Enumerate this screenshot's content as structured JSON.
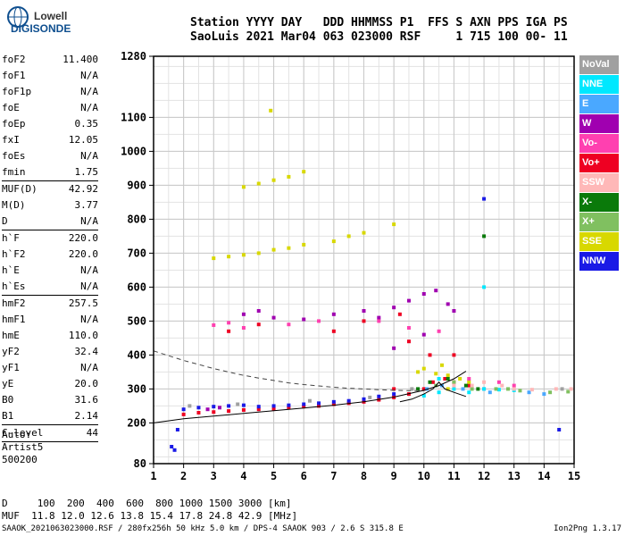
{
  "logo": {
    "line1": "Lowell",
    "line2": "DIGISONDE"
  },
  "header": {
    "line1": "Station YYYY DAY   DDD HHMMSS P1  FFS S AXN PPS IGA PS",
    "line2": "SaoLuis 2021 Mar04 063 023000 RSF     1 715 100 00- 11"
  },
  "params": [
    {
      "name": "foF2",
      "value": "11.400",
      "sep": false
    },
    {
      "name": "foF1",
      "value": "N/A",
      "sep": false
    },
    {
      "name": "foF1p",
      "value": "N/A",
      "sep": false
    },
    {
      "name": "foE",
      "value": "N/A",
      "sep": false
    },
    {
      "name": "foEp",
      "value": "0.35",
      "sep": false
    },
    {
      "name": "fxI",
      "value": "12.05",
      "sep": false
    },
    {
      "name": "foEs",
      "value": "N/A",
      "sep": false
    },
    {
      "name": "fmin",
      "value": "1.75",
      "sep": true
    },
    {
      "name": "MUF(D)",
      "value": "42.92",
      "sep": false
    },
    {
      "name": "M(D)",
      "value": "3.77",
      "sep": false
    },
    {
      "name": "D",
      "value": "N/A",
      "sep": true
    },
    {
      "name": "h`F",
      "value": "220.0",
      "sep": false
    },
    {
      "name": "h`F2",
      "value": "220.0",
      "sep": false
    },
    {
      "name": "h`E",
      "value": "N/A",
      "sep": false
    },
    {
      "name": "h`Es",
      "value": "N/A",
      "sep": true
    },
    {
      "name": "hmF2",
      "value": "257.5",
      "sep": false
    },
    {
      "name": "hmF1",
      "value": "N/A",
      "sep": false
    },
    {
      "name": "hmE",
      "value": "110.0",
      "sep": false
    },
    {
      "name": "yF2",
      "value": "32.4",
      "sep": false
    },
    {
      "name": "yF1",
      "value": "N/A",
      "sep": false
    },
    {
      "name": "yE",
      "value": "20.0",
      "sep": false
    },
    {
      "name": "B0",
      "value": "31.6",
      "sep": false
    },
    {
      "name": "B1",
      "value": "2.14",
      "sep": true
    },
    {
      "name": "C-level",
      "value": "44",
      "sep": true
    }
  ],
  "auto": {
    "line1": "Auto:",
    "line2": "Artist5",
    "line3": "500200"
  },
  "footer": {
    "line1": "D     100  200  400  600  800 1000 1500 3000 [km]",
    "line2": "MUF  11.8 12.0 12.6 13.8 15.4 17.8 24.8 42.9 [MHz]"
  },
  "bottom_line": "SAAOK_2021063023000.RSF / 280fx256h 50 kHz 5.0 km / DPS-4 SAAOK 903 / 2.6 S 315.8 E",
  "version": "Ion2Png 1.3.17",
  "legend": [
    {
      "label": "NoVal",
      "bg": "#a0a0a0",
      "fg": "#ffffff"
    },
    {
      "label": "NNE",
      "bg": "#00e8ff",
      "fg": "#ffffff"
    },
    {
      "label": "E",
      "bg": "#4aa8ff",
      "fg": "#ffffff"
    },
    {
      "label": "W",
      "bg": "#a000b0",
      "fg": "#ffffff"
    },
    {
      "label": "Vo-",
      "bg": "#ff40b0",
      "fg": "#ffffff"
    },
    {
      "label": "Vo+",
      "bg": "#ee0022",
      "fg": "#ffffff"
    },
    {
      "label": "SSW",
      "bg": "#ffb8b8",
      "fg": "#ffffff"
    },
    {
      "label": "X-",
      "bg": "#0a7a0a",
      "fg": "#ffffff"
    },
    {
      "label": "X+",
      "bg": "#80c060",
      "fg": "#ffffff"
    },
    {
      "label": "SSE",
      "bg": "#d8d800",
      "fg": "#ffffff"
    },
    {
      "label": "NNW",
      "bg": "#1a1ae6",
      "fg": "#ffffff"
    }
  ],
  "chart_data": {
    "type": "scatter",
    "title": "",
    "xlabel": "",
    "ylabel": "",
    "xlim": [
      1,
      15
    ],
    "ylim": [
      80,
      1280
    ],
    "x_ticks": [
      1,
      2,
      3,
      4,
      5,
      6,
      7,
      8,
      9,
      10,
      11,
      12,
      13,
      14,
      15
    ],
    "y_ticks": [
      80,
      200,
      300,
      400,
      500,
      600,
      700,
      800,
      900,
      1000,
      1100,
      1280
    ],
    "x_tick_labels": [
      "1",
      "2",
      "3",
      "4",
      "5",
      "6",
      "7",
      "8",
      "9",
      "10",
      "11",
      "12",
      "13",
      "14",
      "15"
    ],
    "y_tick_labels": [
      "80",
      "200",
      "300",
      "400",
      "500",
      "600",
      "700",
      "800",
      "900",
      "1000",
      "1100",
      "1280"
    ],
    "grid": true,
    "series": [
      {
        "name": "Vo+",
        "color": "#ee0022",
        "points": [
          [
            2.0,
            225
          ],
          [
            2.5,
            230
          ],
          [
            3.0,
            232
          ],
          [
            3.5,
            235
          ],
          [
            4.0,
            238
          ],
          [
            4.5,
            240
          ],
          [
            5.0,
            242
          ],
          [
            5.5,
            245
          ],
          [
            6.0,
            248
          ],
          [
            6.5,
            250
          ],
          [
            7.0,
            255
          ],
          [
            7.5,
            258
          ],
          [
            8.0,
            262
          ],
          [
            8.5,
            268
          ],
          [
            9.0,
            275
          ],
          [
            9.5,
            285
          ],
          [
            10.0,
            300
          ],
          [
            10.3,
            320
          ],
          [
            10.7,
            330
          ],
          [
            11.0,
            320
          ],
          [
            11.5,
            310
          ],
          [
            9.0,
            300
          ],
          [
            9.2,
            520
          ],
          [
            8.0,
            500
          ],
          [
            7.0,
            470
          ],
          [
            4.5,
            490
          ],
          [
            3.5,
            470
          ],
          [
            10.2,
            400
          ],
          [
            9.5,
            440
          ],
          [
            11.0,
            400
          ]
        ]
      },
      {
        "name": "NNW",
        "color": "#1a1ae6",
        "points": [
          [
            2.0,
            240
          ],
          [
            2.5,
            245
          ],
          [
            3.0,
            248
          ],
          [
            3.5,
            250
          ],
          [
            4.0,
            252
          ],
          [
            4.5,
            248
          ],
          [
            5.0,
            250
          ],
          [
            5.5,
            252
          ],
          [
            6.0,
            255
          ],
          [
            6.5,
            258
          ],
          [
            7.0,
            262
          ],
          [
            7.5,
            265
          ],
          [
            8.0,
            270
          ],
          [
            8.5,
            278
          ],
          [
            9.0,
            285
          ],
          [
            1.8,
            180
          ],
          [
            1.6,
            130
          ],
          [
            1.7,
            120
          ],
          [
            12.0,
            860
          ],
          [
            14.5,
            180
          ]
        ]
      },
      {
        "name": "SSE",
        "color": "#d8d800",
        "points": [
          [
            10.0,
            360
          ],
          [
            10.4,
            345
          ],
          [
            10.8,
            340
          ],
          [
            11.2,
            330
          ],
          [
            10.6,
            370
          ],
          [
            3.0,
            685
          ],
          [
            3.5,
            690
          ],
          [
            4.0,
            695
          ],
          [
            4.5,
            700
          ],
          [
            5.0,
            710
          ],
          [
            5.5,
            715
          ],
          [
            6.0,
            725
          ],
          [
            7.0,
            735
          ],
          [
            7.5,
            750
          ],
          [
            8.0,
            760
          ],
          [
            9.0,
            785
          ],
          [
            4.0,
            895
          ],
          [
            4.5,
            905
          ],
          [
            5.0,
            915
          ],
          [
            5.5,
            925
          ],
          [
            6.0,
            940
          ],
          [
            4.9,
            1120
          ],
          [
            11.5,
            320
          ],
          [
            10.8,
            300
          ],
          [
            9.8,
            350
          ]
        ]
      },
      {
        "name": "W",
        "color": "#a000b0",
        "points": [
          [
            4.0,
            520
          ],
          [
            4.5,
            530
          ],
          [
            5.0,
            510
          ],
          [
            6.0,
            505
          ],
          [
            7.0,
            520
          ],
          [
            8.0,
            530
          ],
          [
            8.5,
            510
          ],
          [
            9.0,
            540
          ],
          [
            9.5,
            560
          ],
          [
            10.0,
            580
          ],
          [
            10.4,
            590
          ],
          [
            10.8,
            550
          ],
          [
            11.0,
            530
          ],
          [
            10.0,
            460
          ],
          [
            9.0,
            420
          ],
          [
            2.8,
            240
          ],
          [
            3.2,
            245
          ]
        ]
      },
      {
        "name": "Vo-",
        "color": "#ff40b0",
        "points": [
          [
            3.0,
            488
          ],
          [
            3.5,
            495
          ],
          [
            4.0,
            480
          ],
          [
            5.5,
            490
          ],
          [
            6.5,
            500
          ],
          [
            8.5,
            500
          ],
          [
            9.5,
            480
          ],
          [
            10.5,
            470
          ],
          [
            11.5,
            330
          ],
          [
            12.5,
            320
          ],
          [
            13.0,
            310
          ],
          [
            12.0,
            300
          ]
        ]
      },
      {
        "name": "NNE",
        "color": "#00e8ff",
        "points": [
          [
            10.0,
            280
          ],
          [
            10.5,
            290
          ],
          [
            11.0,
            300
          ],
          [
            11.5,
            290
          ],
          [
            12.0,
            300
          ],
          [
            12.5,
            298
          ],
          [
            13.0,
            296
          ],
          [
            12.0,
            600
          ],
          [
            10.5,
            330
          ]
        ]
      },
      {
        "name": "E",
        "color": "#4aa8ff",
        "points": [
          [
            10.1,
            300
          ],
          [
            10.6,
            310
          ],
          [
            11.3,
            300
          ],
          [
            12.2,
            290
          ],
          [
            13.5,
            290
          ],
          [
            14.0,
            285
          ]
        ]
      },
      {
        "name": "X-",
        "color": "#0a7a0a",
        "points": [
          [
            12.0,
            750
          ],
          [
            10.2,
            320
          ],
          [
            10.8,
            330
          ],
          [
            11.4,
            310
          ],
          [
            9.8,
            300
          ],
          [
            11.8,
            300
          ]
        ]
      },
      {
        "name": "X+",
        "color": "#80c060",
        "points": [
          [
            10.4,
            310
          ],
          [
            11.0,
            320
          ],
          [
            11.6,
            300
          ],
          [
            12.4,
            300
          ],
          [
            13.2,
            295
          ],
          [
            14.2,
            290
          ],
          [
            14.8,
            292
          ],
          [
            12.8,
            300
          ]
        ]
      },
      {
        "name": "SSW",
        "color": "#ffb8b8",
        "points": [
          [
            11.6,
            310
          ],
          [
            12.0,
            320
          ],
          [
            12.6,
            310
          ],
          [
            13.0,
            300
          ],
          [
            13.6,
            298
          ],
          [
            14.4,
            300
          ],
          [
            14.9,
            300
          ],
          [
            11.0,
            310
          ]
        ]
      },
      {
        "name": "NoVal",
        "color": "#a0a0a0",
        "points": [
          [
            2.2,
            250
          ],
          [
            3.8,
            255
          ],
          [
            6.2,
            265
          ],
          [
            8.2,
            275
          ],
          [
            9.6,
            300
          ],
          [
            14.6,
            300
          ]
        ]
      }
    ],
    "trace_lines": [
      {
        "style": "dashed",
        "x": [
          1,
          1.5,
          2,
          2.5,
          3,
          3.5,
          4,
          4.5,
          5,
          5.5,
          6,
          6.5,
          7,
          7.5,
          8,
          8.5,
          9,
          9.5,
          10
        ],
        "y": [
          412,
          398,
          384,
          372,
          360,
          350,
          340,
          332,
          325,
          318,
          313,
          309,
          305,
          302,
          300,
          298,
          296,
          295,
          295
        ]
      },
      {
        "style": "solid",
        "x": [
          1,
          2,
          3,
          4,
          5,
          6,
          7,
          8,
          9,
          10,
          10.5,
          11,
          11.4
        ],
        "y": [
          200,
          212,
          220,
          228,
          236,
          244,
          252,
          262,
          276,
          296,
          310,
          330,
          352
        ]
      },
      {
        "style": "solid",
        "x": [
          9.2,
          9.6,
          10,
          10.3,
          10.5,
          10.7,
          11,
          11.4
        ],
        "y": [
          262,
          270,
          285,
          300,
          320,
          300,
          290,
          278
        ]
      }
    ]
  }
}
